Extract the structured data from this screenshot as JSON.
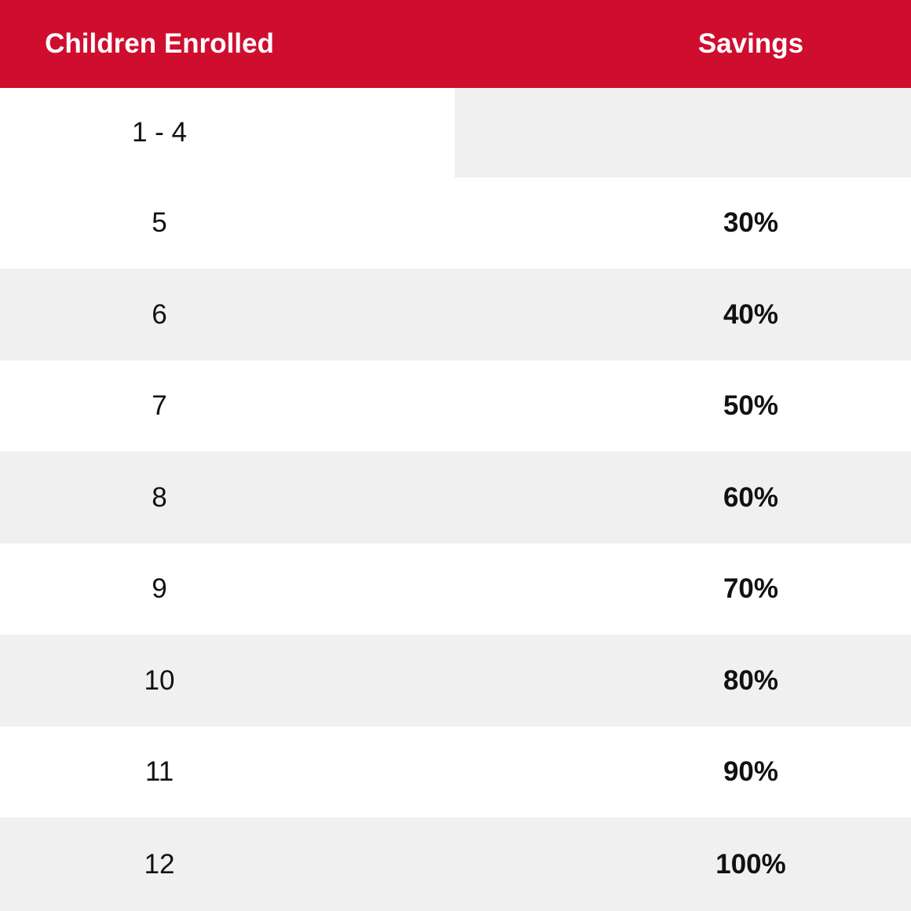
{
  "header": {
    "col_children": "Children Enrolled",
    "col_savings": "Savings"
  },
  "rows": [
    {
      "children": "1 - 4",
      "savings": ""
    },
    {
      "children": "5",
      "savings": "30%"
    },
    {
      "children": "6",
      "savings": "40%"
    },
    {
      "children": "7",
      "savings": "50%"
    },
    {
      "children": "8",
      "savings": "60%"
    },
    {
      "children": "9",
      "savings": "70%"
    },
    {
      "children": "10",
      "savings": "80%"
    },
    {
      "children": "11",
      "savings": "90%"
    },
    {
      "children": "12",
      "savings": "100%"
    }
  ],
  "colors": {
    "header_bg": "#cf0e2f",
    "header_text": "#ffffff",
    "row_shade": "#f0f0f0",
    "row_plain": "#ffffff",
    "body_text": "#111111"
  }
}
